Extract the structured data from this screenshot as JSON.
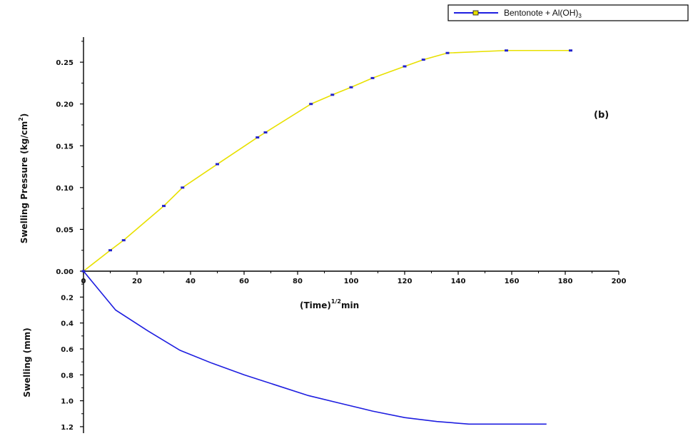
{
  "chart_data": [
    {
      "type": "line",
      "panel": "top",
      "xlabel": "(Time)",
      "xlabel_superscript": "1/2",
      "xlabel_unit": "min",
      "ylabel": "Swelling Pressure (kg/cm",
      "ylabel_superscript": "2",
      "ylabel_close": ")",
      "annotation": "(b)",
      "xlim": [
        0,
        200
      ],
      "ylim": [
        0,
        0.28
      ],
      "x_ticks": [
        0,
        20,
        40,
        60,
        80,
        100,
        120,
        140,
        160,
        180,
        200
      ],
      "y_ticks": [
        0.0,
        0.05,
        0.1,
        0.15,
        0.2,
        0.25
      ],
      "y_tick_labels": [
        "0.00",
        "0.05",
        "0.10",
        "0.15",
        "0.20",
        "0.25"
      ],
      "series": [
        {
          "color": "#e8e000",
          "marker_color": "#2222cc",
          "x": [
            0,
            10,
            15,
            30,
            37,
            50,
            65,
            68,
            85,
            93,
            100,
            108,
            120,
            127,
            136,
            158,
            182
          ],
          "y": [
            0.0,
            0.025,
            0.037,
            0.078,
            0.1,
            0.128,
            0.16,
            0.166,
            0.2,
            0.211,
            0.22,
            0.231,
            0.245,
            0.253,
            0.261,
            0.264,
            0.264
          ]
        }
      ]
    },
    {
      "type": "line",
      "panel": "bottom",
      "ylabel": "Swelling (mm)",
      "xlim": [
        0,
        200
      ],
      "ylim": [
        0,
        1.25
      ],
      "y_inverted": true,
      "y_ticks": [
        0.2,
        0.4,
        0.6,
        0.8,
        1.0,
        1.2
      ],
      "y_tick_labels": [
        "0.2",
        "0.4",
        "0.6",
        "0.8",
        "1.0",
        "1.2"
      ],
      "series": [
        {
          "name": "Bentonote + Al(OH)3",
          "color": "#1e1ee0",
          "x": [
            0,
            12,
            24,
            36,
            48,
            60,
            72,
            84,
            96,
            108,
            120,
            132,
            144,
            156,
            173
          ],
          "y": [
            0.0,
            0.3,
            0.46,
            0.61,
            0.71,
            0.8,
            0.88,
            0.96,
            1.02,
            1.08,
            1.13,
            1.16,
            1.18,
            1.18,
            1.18
          ]
        }
      ]
    }
  ],
  "legend": {
    "label_main": "Bentonote + Al(OH)",
    "label_sub": "3",
    "line_color": "#1e1ee0",
    "marker_color": "#e8e000",
    "placement": "top-right"
  }
}
